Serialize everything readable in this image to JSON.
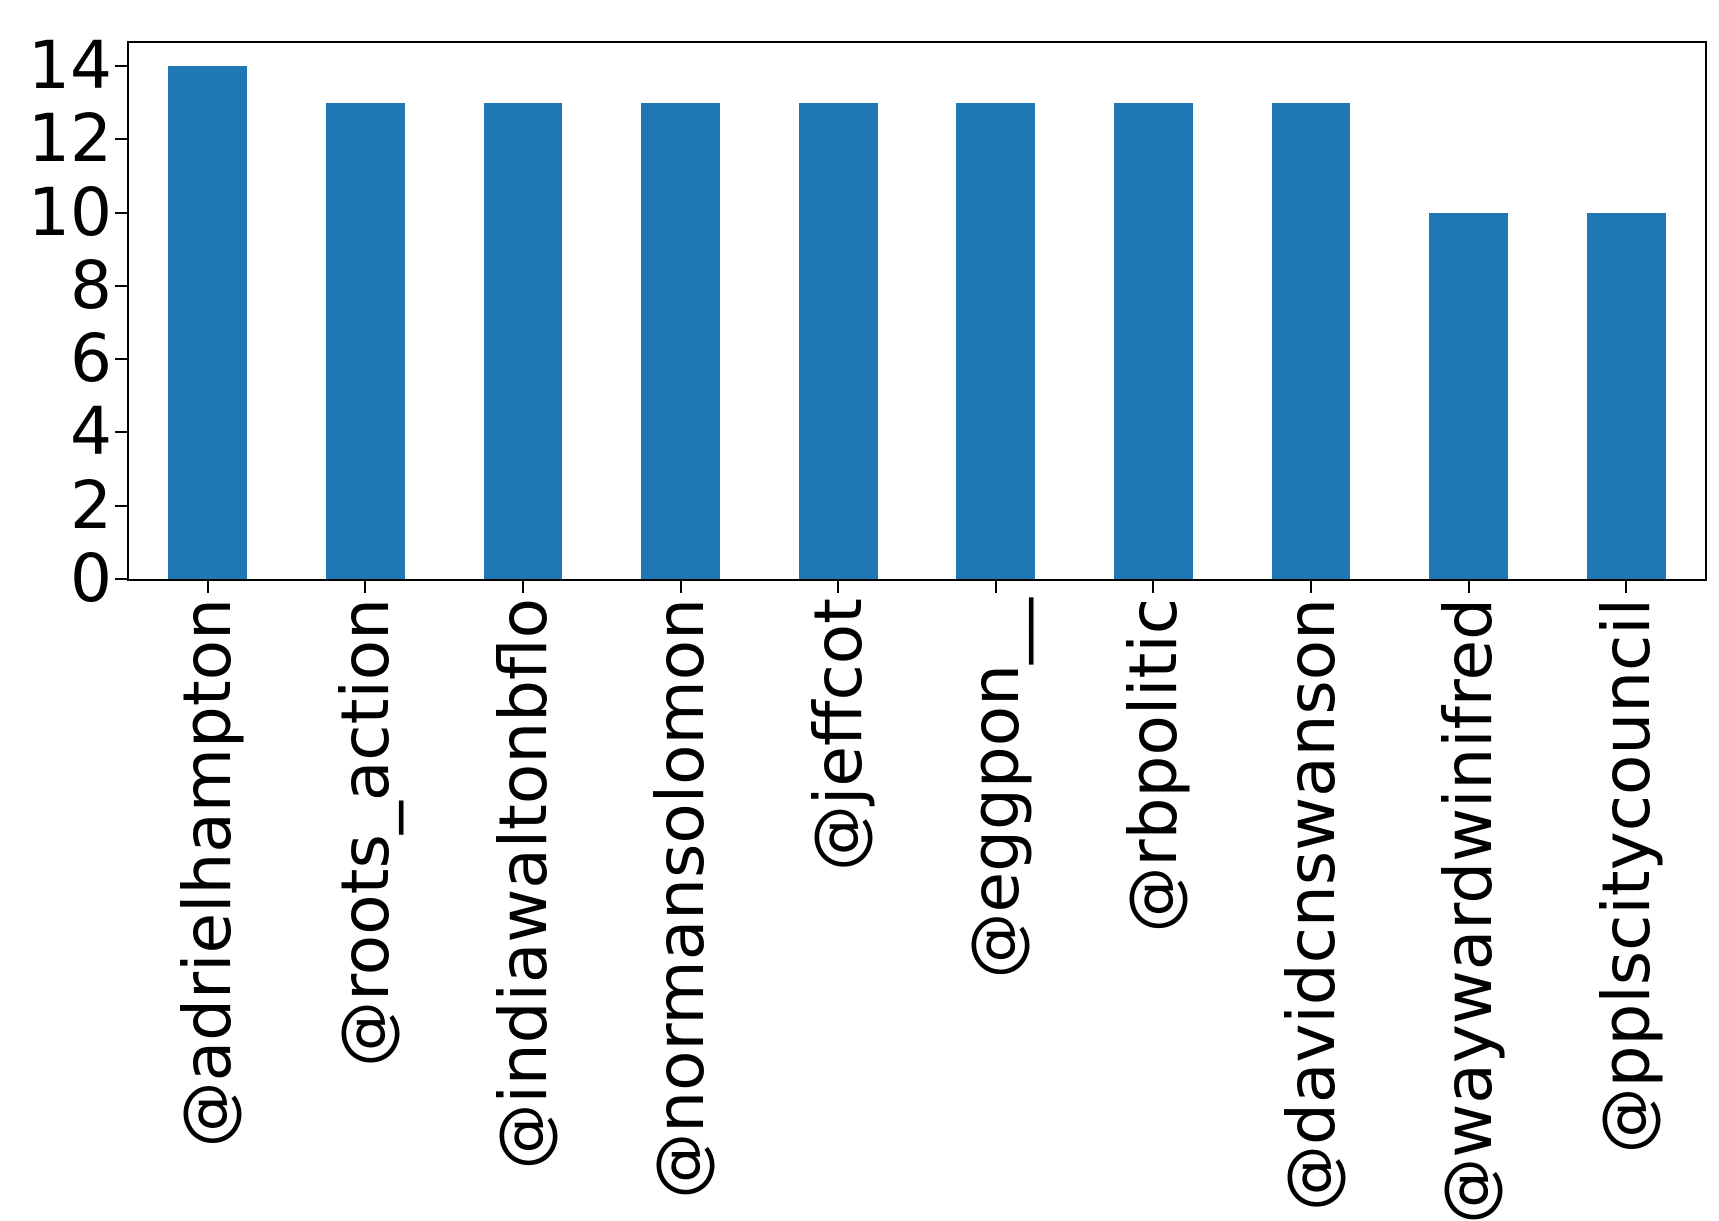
{
  "chart_data": {
    "type": "bar",
    "title": "",
    "xlabel": "",
    "ylabel": "",
    "categories": [
      "@adrielhampton",
      "@roots_action",
      "@indiawaltonbflo",
      "@normansolomon",
      "@jeffcot",
      "@eggpon__",
      "@rbpolitic",
      "@davidcnswanson",
      "@waywardwinifred",
      "@pplscitycouncil"
    ],
    "values": [
      14,
      13,
      13,
      13,
      13,
      13,
      13,
      13,
      10,
      10
    ],
    "yticks": [
      0,
      2,
      4,
      6,
      8,
      10,
      12,
      14
    ],
    "ylim": [
      0,
      14.63
    ],
    "x_tick_rotation": 90,
    "grid": false,
    "legend": "none",
    "bar_color": "#1f77b4",
    "axis_color": "#000000",
    "background_color": "#ffffff"
  }
}
